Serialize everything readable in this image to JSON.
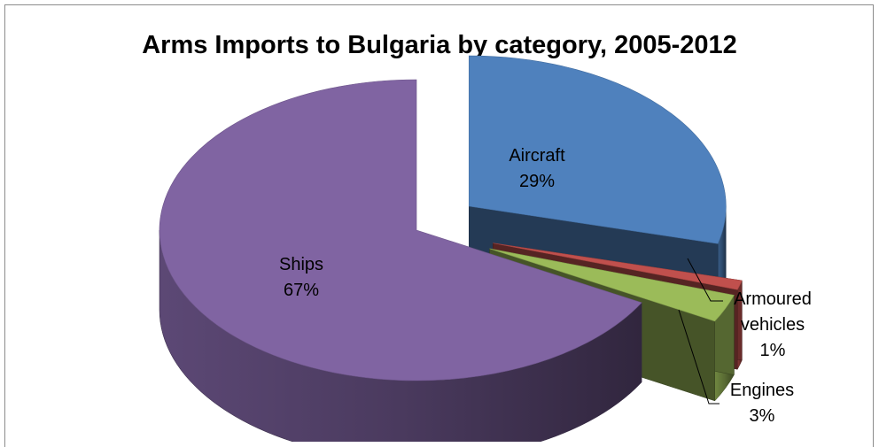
{
  "chart_data": {
    "type": "pie",
    "style": "3d-exploded",
    "title": "Arms Imports to Bulgaria by category, 2005-2012",
    "categories": [
      "Aircraft",
      "Armoured vehicles",
      "Engines",
      "Ships"
    ],
    "values": [
      29,
      1,
      3,
      67
    ],
    "value_labels": [
      "29%",
      "1%",
      "3%",
      "67%"
    ],
    "colors": [
      "#4f81bd",
      "#c0504d",
      "#9bbb59",
      "#8064a2"
    ],
    "legend": "none",
    "data_labels": "category name and percentage"
  }
}
